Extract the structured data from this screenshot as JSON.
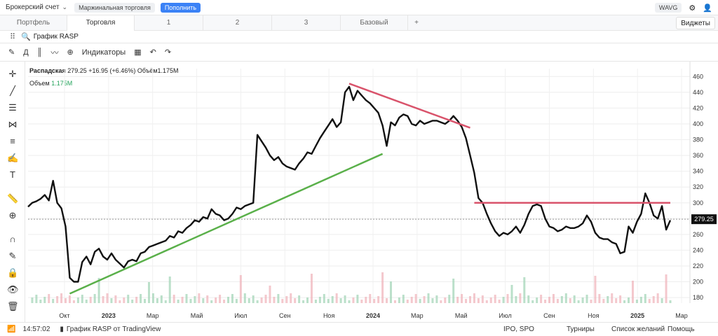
{
  "topbar": {
    "account": "Брокерский счет",
    "margin": "Маржинальная торговля",
    "topup": "Пополнить",
    "wavg": "WAVG"
  },
  "tabs": [
    "Портфель",
    "Торговля",
    "1",
    "2",
    "3",
    "Базовый"
  ],
  "widgets_label": "Виджеты",
  "chart_title": "График RASP",
  "toolbar": {
    "period": "Д",
    "indicators": "Индикаторы"
  },
  "legend": {
    "name": "Распадская",
    "price": "279.25",
    "change": "+16.95 (+6.46%)",
    "volume_label": "Объём",
    "volume": "1.175M",
    "volume_row_label": "Объем",
    "volume_row_value": "1.175M"
  },
  "price_tag": "279.25",
  "statusbar": {
    "time": "14:57:02",
    "source": "График RASP от TradingView",
    "ipo": "IPO, SPO",
    "tournaments": "Турниры",
    "wishlist": "Список желаний",
    "help": "Помощь"
  },
  "colors": {
    "up": "#cc3344",
    "trend_up": "#4aa83b",
    "line": "#111111"
  },
  "chart_data": {
    "type": "line",
    "y_ticks": [
      460,
      440,
      420,
      400,
      380,
      360,
      340,
      320,
      300,
      280,
      260,
      240,
      220,
      200,
      180
    ],
    "ylim": [
      173,
      470
    ],
    "x_ticks": [
      "Окт",
      "2023",
      "Мар",
      "Май",
      "Июл",
      "Сен",
      "Ноя",
      "2024",
      "Мар",
      "Май",
      "Июл",
      "Сен",
      "Ноя",
      "2025",
      "Мар"
    ],
    "series": [
      {
        "values": [
          295,
          300,
          302,
          305,
          310,
          303,
          328,
          300,
          293,
          270,
          205,
          200,
          200,
          225,
          232,
          222,
          238,
          242,
          232,
          228,
          236,
          228,
          223,
          218,
          226,
          228,
          226,
          236,
          238,
          244,
          246,
          248,
          250,
          252,
          258,
          256,
          264,
          262,
          268,
          272,
          278,
          276,
          282,
          280,
          292,
          286,
          284,
          278,
          280,
          286,
          294,
          292,
          296,
          298,
          300,
          386,
          378,
          370,
          360,
          354,
          358,
          350,
          346,
          344,
          342,
          350,
          356,
          364,
          362,
          372,
          382,
          390,
          398,
          406,
          396,
          402,
          440,
          447,
          430,
          442,
          436,
          430,
          426,
          420,
          414,
          398,
          372,
          402,
          398,
          408,
          412,
          410,
          400,
          398,
          404,
          400,
          402,
          404,
          404,
          402,
          400,
          404,
          410,
          404,
          396,
          382,
          360,
          338,
          306,
          300,
          286,
          274,
          264,
          258,
          262,
          260,
          264,
          270,
          262,
          272,
          286,
          296,
          298,
          296,
          280,
          270,
          268,
          264,
          266,
          270,
          268,
          268,
          270,
          274,
          284,
          276,
          262,
          256,
          254,
          254,
          250,
          248,
          236,
          238,
          270,
          262,
          276,
          286,
          312,
          300,
          284,
          280,
          296,
          266,
          278
        ]
      }
    ],
    "trendlines": [
      {
        "from": [
          0.0,
          188
        ],
        "to": [
          1,
          365
        ]
      },
      {
        "from": [
          0,
          451
        ],
        "to": [
          1,
          396
        ]
      },
      {
        "from": [
          0,
          300
        ],
        "to": [
          1,
          300
        ]
      }
    ]
  }
}
